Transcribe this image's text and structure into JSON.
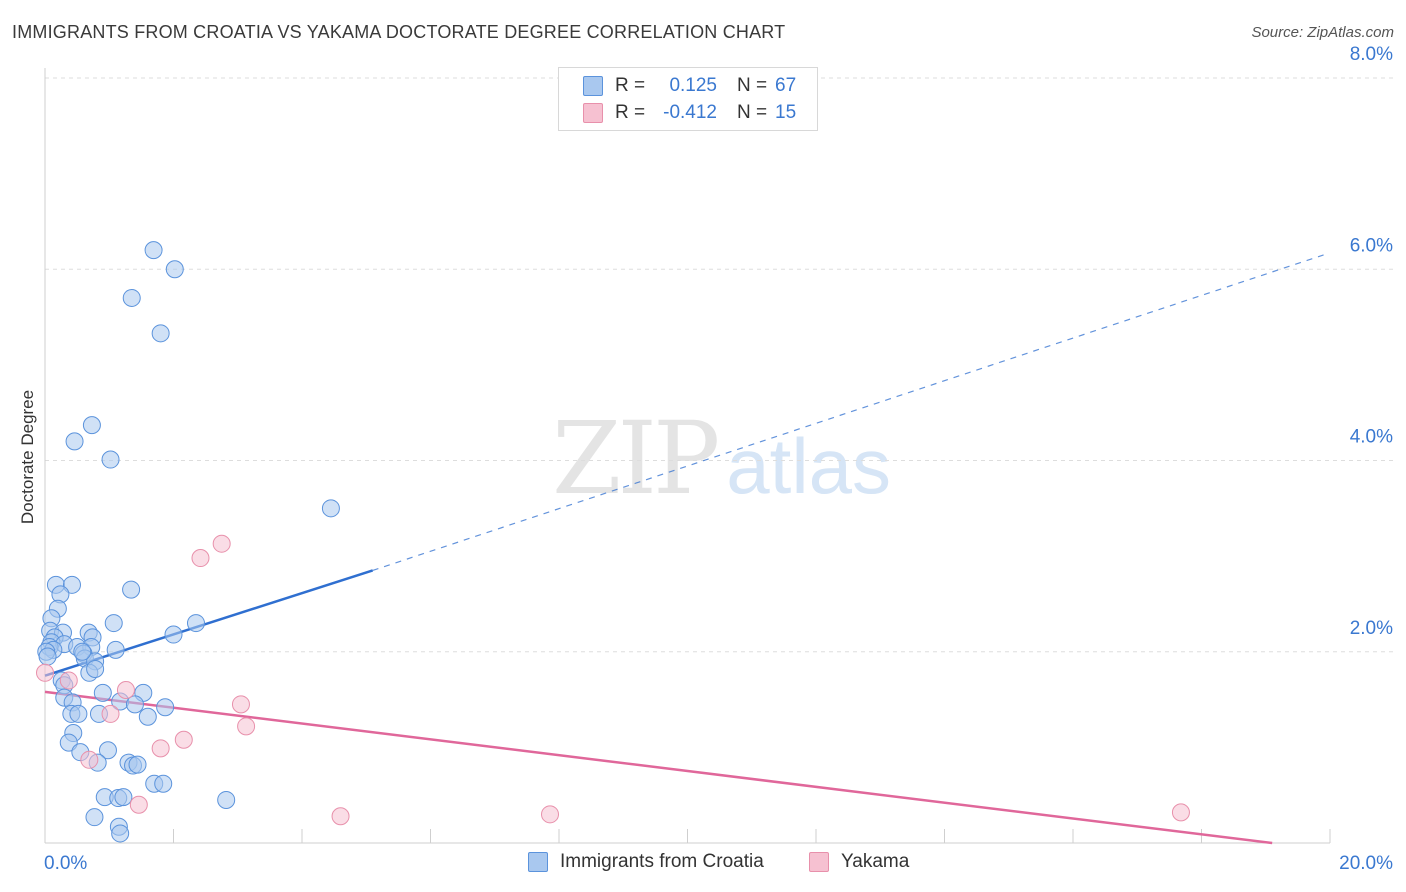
{
  "header": {
    "title": "IMMIGRANTS FROM CROATIA VS YAKAMA DOCTORATE DEGREE CORRELATION CHART",
    "source": "Source: ZipAtlas.com"
  },
  "legend_top": [
    {
      "r_label": "R =",
      "r_value": "0.125",
      "n_label": "N =",
      "n_value": "67"
    },
    {
      "r_label": "R =",
      "r_value": "-0.412",
      "n_label": "N =",
      "n_value": "15"
    }
  ],
  "legend_bottom": [
    {
      "label": "Immigrants from Croatia"
    },
    {
      "label": "Yakama"
    }
  ],
  "watermark": {
    "zip": "ZIP",
    "atlas": "atlas"
  },
  "colors": {
    "blue_fill": "#a9c8ef",
    "blue_stroke": "#5b93dc",
    "blue_line": "#2f6fd0",
    "pink_fill": "#f6c1d1",
    "pink_stroke": "#e890ab",
    "pink_line": "#e0679a",
    "axis_text": "#3a78d0",
    "grid": "#dddddd"
  },
  "chart_data": {
    "type": "scatter",
    "title": "IMMIGRANTS FROM CROATIA VS YAKAMA DOCTORATE DEGREE CORRELATION CHART",
    "xlabel": "",
    "ylabel": "Doctorate Degree",
    "xlim": [
      0,
      20
    ],
    "ylim": [
      0,
      8
    ],
    "x_tick_labels": [
      "0.0%",
      "20.0%"
    ],
    "y_ticks": [
      2,
      4,
      6,
      8
    ],
    "y_tick_labels": [
      "2.0%",
      "4.0%",
      "6.0%",
      "8.0%"
    ],
    "series": [
      {
        "name": "Immigrants from Croatia",
        "r": 0.125,
        "n": 67,
        "trend": {
          "x0": 0,
          "y0": 1.75,
          "x1": 5.1,
          "y1": 2.85,
          "x_dash_end": 19.9,
          "y_dash_end": 6.15
        },
        "points": [
          [
            1.69,
            6.2
          ],
          [
            2.02,
            6.0
          ],
          [
            1.35,
            5.7
          ],
          [
            1.8,
            5.33
          ],
          [
            0.73,
            4.37
          ],
          [
            0.46,
            4.2
          ],
          [
            1.02,
            4.01
          ],
          [
            4.45,
            3.5
          ],
          [
            0.17,
            2.7
          ],
          [
            0.42,
            2.7
          ],
          [
            1.34,
            2.65
          ],
          [
            0.24,
            2.6
          ],
          [
            0.2,
            2.45
          ],
          [
            0.1,
            2.35
          ],
          [
            1.07,
            2.3
          ],
          [
            2.35,
            2.3
          ],
          [
            0.08,
            2.22
          ],
          [
            0.28,
            2.2
          ],
          [
            0.68,
            2.2
          ],
          [
            0.15,
            2.15
          ],
          [
            2.0,
            2.18
          ],
          [
            0.74,
            2.15
          ],
          [
            0.1,
            2.1
          ],
          [
            0.3,
            2.08
          ],
          [
            0.07,
            2.05
          ],
          [
            0.13,
            2.02
          ],
          [
            0.5,
            2.05
          ],
          [
            0.72,
            2.05
          ],
          [
            1.1,
            2.02
          ],
          [
            0.6,
            1.98
          ],
          [
            0.62,
            1.93
          ],
          [
            0.78,
            1.9
          ],
          [
            0.69,
            1.78
          ],
          [
            0.78,
            1.82
          ],
          [
            0.26,
            1.7
          ],
          [
            0.3,
            1.65
          ],
          [
            0.9,
            1.57
          ],
          [
            1.53,
            1.57
          ],
          [
            0.3,
            1.52
          ],
          [
            1.17,
            1.48
          ],
          [
            0.43,
            1.47
          ],
          [
            1.4,
            1.45
          ],
          [
            1.87,
            1.42
          ],
          [
            0.41,
            1.35
          ],
          [
            0.52,
            1.35
          ],
          [
            0.84,
            1.35
          ],
          [
            1.6,
            1.32
          ],
          [
            0.44,
            1.15
          ],
          [
            0.37,
            1.05
          ],
          [
            0.98,
            0.97
          ],
          [
            0.55,
            0.95
          ],
          [
            0.82,
            0.84
          ],
          [
            1.3,
            0.84
          ],
          [
            1.37,
            0.81
          ],
          [
            1.44,
            0.82
          ],
          [
            1.7,
            0.62
          ],
          [
            1.84,
            0.62
          ],
          [
            0.93,
            0.48
          ],
          [
            1.14,
            0.47
          ],
          [
            1.22,
            0.48
          ],
          [
            2.82,
            0.45
          ],
          [
            0.77,
            0.27
          ],
          [
            1.15,
            0.17
          ],
          [
            1.17,
            0.1
          ],
          [
            0.02,
            2.0
          ],
          [
            0.04,
            1.95
          ],
          [
            0.58,
            2.0
          ]
        ]
      },
      {
        "name": "Yakama",
        "r": -0.412,
        "n": 15,
        "trend": {
          "x0": 0,
          "y0": 1.58,
          "x1": 19.1,
          "y1": 0.0
        },
        "points": [
          [
            2.75,
            3.13
          ],
          [
            2.42,
            2.98
          ],
          [
            0.0,
            1.78
          ],
          [
            1.26,
            1.6
          ],
          [
            3.05,
            1.45
          ],
          [
            1.02,
            1.35
          ],
          [
            3.13,
            1.22
          ],
          [
            2.16,
            1.08
          ],
          [
            1.8,
            0.99
          ],
          [
            0.69,
            0.87
          ],
          [
            0.37,
            1.7
          ],
          [
            1.46,
            0.4
          ],
          [
            4.6,
            0.28
          ],
          [
            7.86,
            0.3
          ],
          [
            17.68,
            0.32
          ]
        ]
      }
    ]
  }
}
